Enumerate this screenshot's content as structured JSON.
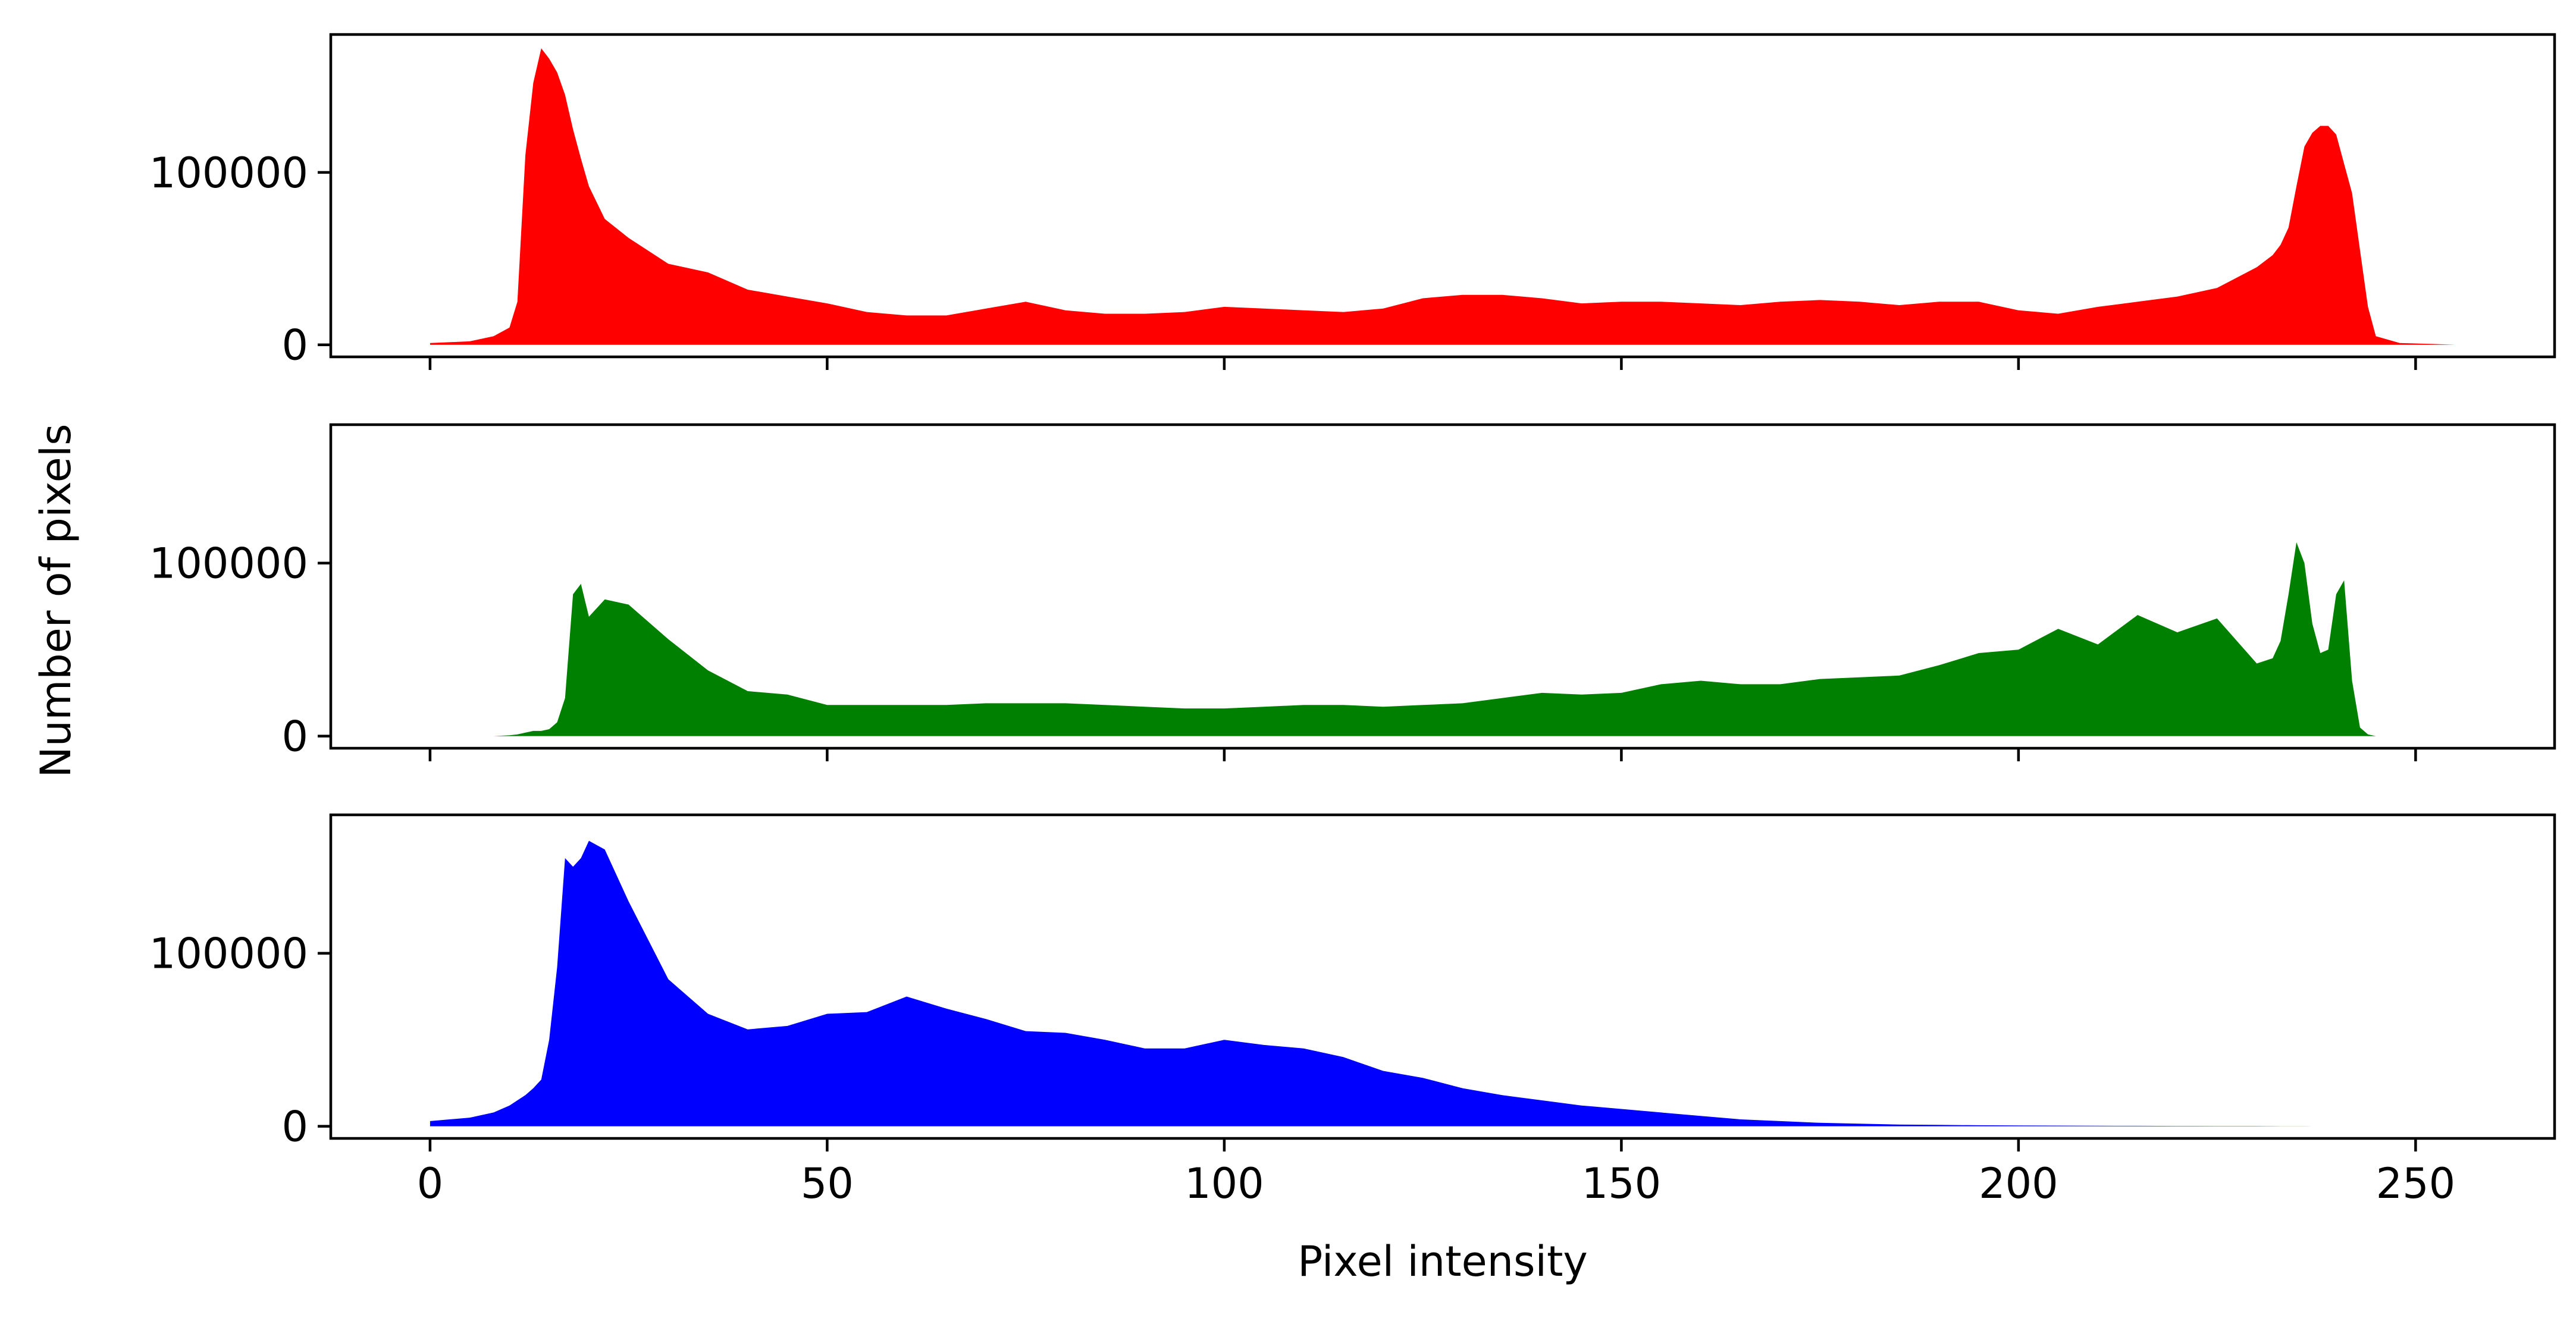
{
  "chart_data": {
    "type": "area",
    "xlabel": "Pixel intensity",
    "ylabel": "Number of pixels",
    "xlim": [
      -12.5,
      267.5
    ],
    "ylim": [
      -7000,
      180000
    ],
    "sharex": true,
    "grid": false,
    "x_ticks": [
      0,
      50,
      100,
      150,
      200,
      250
    ],
    "x_tick_labels": [
      "0",
      "50",
      "100",
      "150",
      "200",
      "250"
    ],
    "y_ticks": [
      0,
      100000
    ],
    "y_tick_labels": [
      "0",
      "100000"
    ],
    "x": [
      0,
      5,
      8,
      10,
      11,
      12,
      13,
      14,
      15,
      16,
      17,
      18,
      19,
      20,
      22,
      25,
      30,
      35,
      40,
      45,
      50,
      55,
      60,
      65,
      70,
      75,
      80,
      85,
      90,
      95,
      100,
      105,
      110,
      115,
      120,
      125,
      130,
      135,
      140,
      145,
      150,
      155,
      160,
      165,
      170,
      175,
      180,
      185,
      190,
      195,
      200,
      205,
      210,
      215,
      220,
      225,
      230,
      232,
      233,
      234,
      235,
      236,
      237,
      238,
      239,
      240,
      241,
      242,
      243,
      244,
      245,
      248,
      252,
      255
    ],
    "panels": [
      {
        "name": "Red",
        "color": "#ff0000",
        "values": [
          1000,
          2000,
          5000,
          10000,
          25000,
          110000,
          152000,
          172000,
          166000,
          158000,
          145000,
          125000,
          108000,
          92000,
          73000,
          62000,
          47000,
          42000,
          32000,
          28000,
          24000,
          19000,
          17000,
          17000,
          21000,
          25000,
          20000,
          18000,
          18000,
          19000,
          22000,
          21000,
          20000,
          19000,
          21000,
          27000,
          29000,
          29000,
          27000,
          24000,
          25000,
          25000,
          24000,
          23000,
          25000,
          26000,
          25000,
          23000,
          25000,
          25000,
          20000,
          18000,
          22000,
          25000,
          28000,
          33000,
          45000,
          52000,
          58000,
          68000,
          92000,
          115000,
          123000,
          127000,
          127000,
          122000,
          105000,
          88000,
          55000,
          22000,
          5000,
          1000,
          500,
          0
        ]
      },
      {
        "name": "Green",
        "color": "#008000",
        "values": [
          0,
          0,
          0,
          500,
          1000,
          2000,
          3000,
          3000,
          4000,
          8000,
          22000,
          82000,
          88000,
          69000,
          79000,
          76000,
          56000,
          38000,
          26000,
          24000,
          18000,
          18000,
          18000,
          18000,
          19000,
          19000,
          19000,
          18000,
          17000,
          16000,
          16000,
          17000,
          18000,
          18000,
          17000,
          18000,
          19000,
          22000,
          25000,
          24000,
          25000,
          30000,
          32000,
          30000,
          30000,
          33000,
          34000,
          35000,
          41000,
          48000,
          50000,
          62000,
          53000,
          70000,
          60000,
          68000,
          42000,
          45000,
          55000,
          82000,
          112000,
          100000,
          65000,
          48000,
          50000,
          82000,
          90000,
          32000,
          5000,
          1000,
          0,
          0,
          0,
          0
        ]
      },
      {
        "name": "Blue",
        "color": "#0000ff",
        "values": [
          3000,
          5000,
          8000,
          12000,
          15000,
          18000,
          22000,
          27000,
          50000,
          92000,
          155000,
          150000,
          155000,
          165000,
          160000,
          130000,
          85000,
          65000,
          56000,
          58000,
          65000,
          66000,
          75000,
          68000,
          62000,
          55000,
          54000,
          50000,
          45000,
          45000,
          50000,
          47000,
          45000,
          40000,
          32000,
          28000,
          22000,
          18000,
          15000,
          12000,
          10000,
          8000,
          6000,
          4000,
          3000,
          2000,
          1500,
          1000,
          800,
          600,
          500,
          400,
          300,
          250,
          200,
          150,
          100,
          80,
          60,
          50,
          40,
          30,
          20,
          15,
          10,
          8,
          6,
          5,
          4,
          3,
          2,
          1,
          0,
          0
        ]
      }
    ]
  }
}
